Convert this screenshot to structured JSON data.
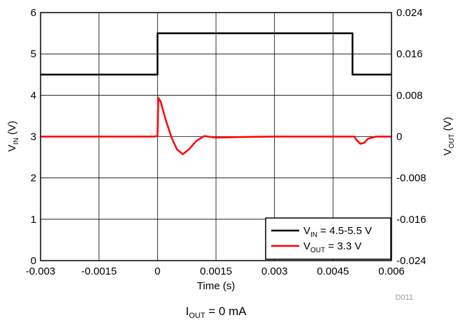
{
  "chart_data": {
    "type": "line",
    "x_axis": {
      "label_text": "Time (s)",
      "range": [
        -0.003,
        0.006
      ],
      "ticks": [
        -0.003,
        -0.0015,
        0,
        0.0015,
        0.003,
        0.0045,
        0.006
      ],
      "tick_labels": [
        "-0.003",
        "-0.0015",
        "0",
        "0.0015",
        "0.003",
        "0.0045",
        "0.006"
      ]
    },
    "y_left": {
      "label_main": "V",
      "label_sub": "IN",
      "label_unit": " (V)",
      "range": [
        0,
        6
      ],
      "ticks": [
        0,
        1,
        2,
        3,
        4,
        5,
        6
      ],
      "tick_labels": [
        "0",
        "1",
        "2",
        "3",
        "4",
        "5",
        "6"
      ]
    },
    "y_right": {
      "label_main": "V",
      "label_sub": "OUT",
      "label_unit": " (V)",
      "range": [
        -0.024,
        0.024
      ],
      "ticks": [
        -0.024,
        -0.016,
        -0.008,
        0,
        0.008,
        0.016,
        0.024
      ],
      "tick_labels": [
        "-0.024",
        "-0.016",
        "-0.008",
        "0",
        "0.008",
        "0.016",
        "0.024"
      ]
    },
    "grid": true,
    "legend_position": "bottom-right",
    "series": [
      {
        "name_main": "V",
        "name_sub": "IN",
        "name_rest": " = 4.5-5.5 V",
        "axis": "left",
        "color": "#000000",
        "points": [
          [
            -0.003,
            4.5
          ],
          [
            0.0,
            4.5
          ],
          [
            0.0,
            5.5
          ],
          [
            0.005,
            5.5
          ],
          [
            0.005,
            4.5
          ],
          [
            0.006,
            4.5
          ]
        ]
      },
      {
        "name_main": "V",
        "name_sub": "OUT",
        "name_rest": " = 3.3 V",
        "axis": "right",
        "color": "#ff0000",
        "points": [
          [
            -0.003,
            0.0
          ],
          [
            -0.0001,
            0.0
          ],
          [
            0.0,
            0.0001
          ],
          [
            2e-05,
            0.0075
          ],
          [
            8e-05,
            0.0068
          ],
          [
            0.0002,
            0.0035
          ],
          [
            0.00035,
            0.0
          ],
          [
            0.0005,
            -0.0025
          ],
          [
            0.00065,
            -0.0034
          ],
          [
            0.0008,
            -0.0025
          ],
          [
            0.001,
            -0.0008
          ],
          [
            0.0012,
            0.0001
          ],
          [
            0.0015,
            -0.0002
          ],
          [
            0.002,
            -0.0001
          ],
          [
            0.003,
            0.0
          ],
          [
            0.004,
            0.0
          ],
          [
            0.0049,
            0.0
          ],
          [
            0.00505,
            0.0
          ],
          [
            0.0051,
            -0.0006
          ],
          [
            0.0052,
            -0.0014
          ],
          [
            0.0053,
            -0.0012
          ],
          [
            0.0054,
            -0.0004
          ],
          [
            0.0056,
            0.0
          ],
          [
            0.006,
            0.0
          ]
        ]
      }
    ],
    "code_label": "D011",
    "caption_main": "I",
    "caption_sub": "OUT",
    "caption_rest": " = 0 mA"
  }
}
